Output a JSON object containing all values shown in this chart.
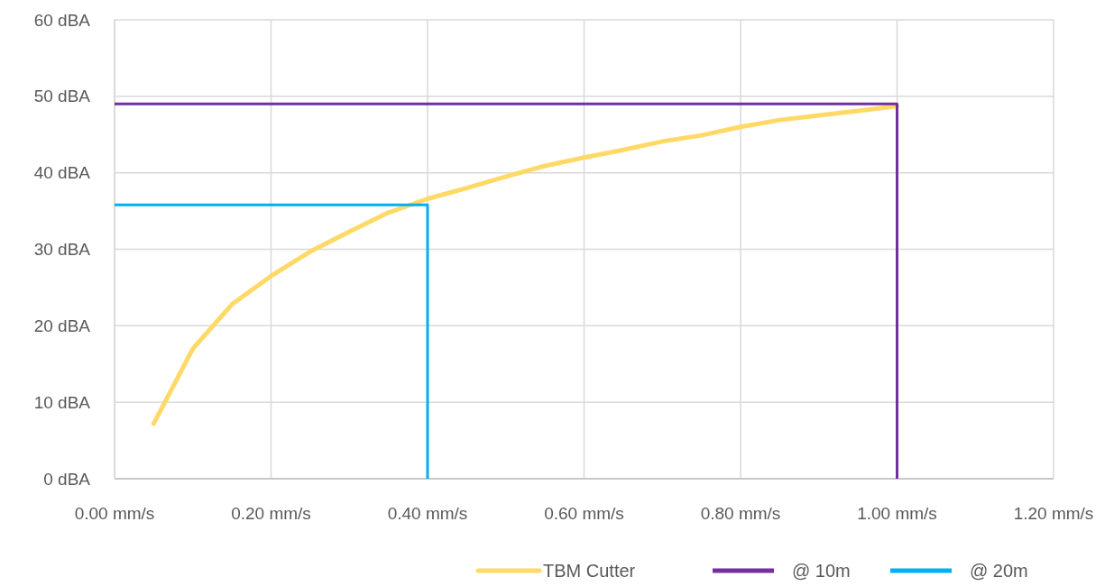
{
  "chart_data": {
    "type": "line",
    "x": [
      0.05,
      0.1,
      0.15,
      0.2,
      0.25,
      0.3,
      0.35,
      0.4,
      0.45,
      0.5,
      0.55,
      0.6,
      0.65,
      0.7,
      0.75,
      0.8,
      0.85,
      0.9,
      0.95,
      1.0
    ],
    "series": [
      {
        "name": "TBM Cutter",
        "color": "#ffd966",
        "values": [
          7.2,
          17,
          22.8,
          26.5,
          29.7,
          32.3,
          34.8,
          36.6,
          38,
          39.5,
          40.9,
          42,
          43,
          44.1,
          44.9,
          46,
          46.9,
          47.5,
          48.1,
          48.7
        ]
      },
      {
        "name": "@ 10m",
        "color": "#7030a0",
        "x": [
          0,
          1.0,
          1.0
        ],
        "values": [
          49,
          49,
          0
        ]
      },
      {
        "name": "@ 20m",
        "color": "#00b0f0",
        "x": [
          0,
          0.4,
          0.4
        ],
        "values": [
          35.8,
          35.8,
          0
        ]
      }
    ],
    "xlim": [
      0,
      1.2
    ],
    "xticks": [
      {
        "value": 0,
        "label": "0.00 mm/s"
      },
      {
        "value": 0.2,
        "label": "0.20 mm/s"
      },
      {
        "value": 0.4,
        "label": "0.40 mm/s"
      },
      {
        "value": 0.6,
        "label": "0.60 mm/s"
      },
      {
        "value": 0.8,
        "label": "0.80 mm/s"
      },
      {
        "value": 1.0,
        "label": "1.00 mm/s"
      },
      {
        "value": 1.2,
        "label": "1.20 mm/s"
      }
    ],
    "ylim": [
      0,
      60
    ],
    "yticks": [
      {
        "value": 0,
        "label": "0 dBA"
      },
      {
        "value": 10,
        "label": "10 dBA"
      },
      {
        "value": 20,
        "label": "20 dBA"
      },
      {
        "value": 30,
        "label": "30 dBA"
      },
      {
        "value": 40,
        "label": "40 dBA"
      },
      {
        "value": 50,
        "label": "50 dBA"
      },
      {
        "value": 60,
        "label": "60 dBA"
      }
    ],
    "grid": true,
    "legend": "bottom",
    "marker": "none",
    "line_style": "solid"
  }
}
